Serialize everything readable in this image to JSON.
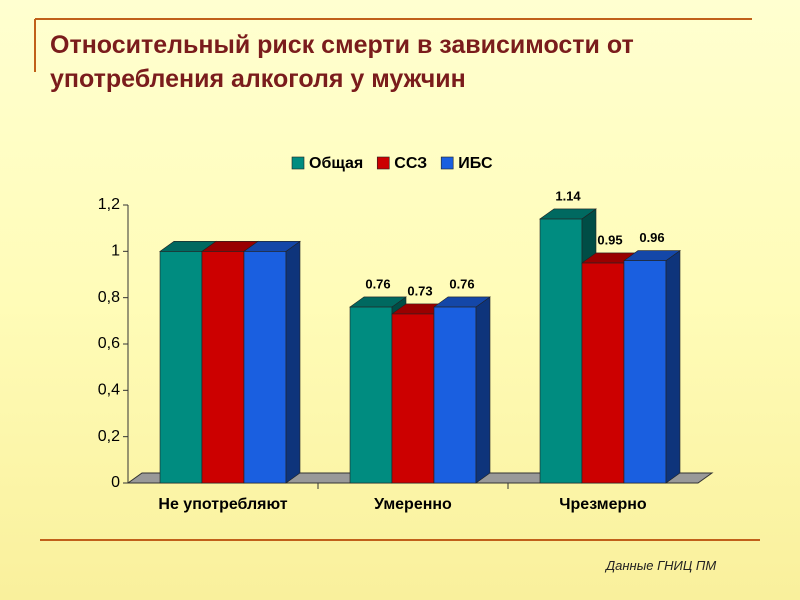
{
  "chart_data": {
    "type": "bar",
    "title": "Относительный риск смерти в зависимости от употребления алкоголя у мужчин",
    "source": "Данные ГНИЦ ПМ",
    "categories": [
      "Не употребляют",
      "Умеренно",
      "Чрезмерно"
    ],
    "series": [
      {
        "name": "Общая",
        "color": "#008c80",
        "values": [
          1,
          0.76,
          1.14
        ],
        "value_labels": [
          null,
          "0.76",
          "1.14"
        ]
      },
      {
        "name": "ССЗ",
        "color": "#cc0000",
        "values": [
          1,
          0.73,
          0.95
        ],
        "value_labels": [
          null,
          "0.73",
          "0.95"
        ]
      },
      {
        "name": "ИБС",
        "color": "#1a5fe0",
        "values": [
          1,
          0.76,
          0.96
        ],
        "value_labels": [
          null,
          "0.76",
          "0.96"
        ]
      }
    ],
    "ylim": [
      0,
      1.2
    ],
    "yticks": [
      0,
      {
        "value": 0.2,
        "label": "0,2"
      },
      {
        "value": 0.4,
        "label": "0,4"
      },
      {
        "value": 0.6,
        "label": "0,6"
      },
      {
        "value": 0.8,
        "label": "0,8"
      },
      1,
      {
        "value": 1.2,
        "label": "1,2"
      }
    ],
    "legend": "top"
  }
}
